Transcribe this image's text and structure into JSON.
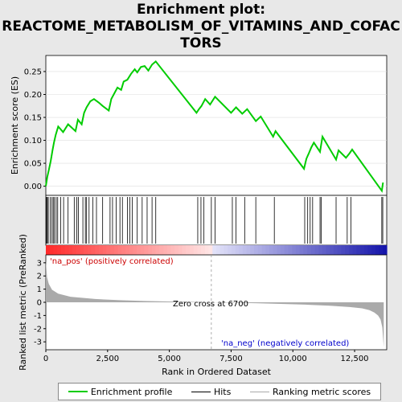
{
  "title_line1": "Enrichment plot:",
  "title_line2": "REACTOME_METABOLISM_OF_VITAMINS_AND_COFAC",
  "title_line3": "TORS",
  "colors": {
    "enrichment": "#00cc00",
    "hits": "#000000",
    "metric": "#aaaaaa",
    "pos_label": "#cc0000",
    "neg_label": "#0000cc"
  },
  "chart_data": {
    "type": "line",
    "xlabel": "Rank in Ordered Dataset",
    "x_ticks": [
      0,
      2500,
      5000,
      7500,
      10000,
      12500
    ],
    "x_tick_labels": [
      "0",
      "2,500",
      "5,000",
      "7,500",
      "10,000",
      "12,500"
    ],
    "xlim": [
      0,
      13800
    ],
    "es_panel": {
      "ylabel": "Enrichment score (ES)",
      "ylim": [
        -0.02,
        0.285
      ],
      "y_ticks": [
        0.0,
        0.05,
        0.1,
        0.15,
        0.2,
        0.25
      ],
      "y_tick_labels": [
        "0.00",
        "0.05",
        "0.10",
        "0.15",
        "0.20",
        "0.25"
      ],
      "series": [
        {
          "name": "Enrichment profile",
          "x": [
            0,
            60,
            120,
            200,
            270,
            330,
            400,
            500,
            700,
            900,
            1200,
            1300,
            1450,
            1550,
            1650,
            1800,
            1950,
            2150,
            2300,
            2550,
            2650,
            2800,
            2900,
            3050,
            3150,
            3300,
            3450,
            3600,
            3700,
            3850,
            4000,
            4150,
            4300,
            4450,
            6100,
            6200,
            6300,
            6450,
            6650,
            6850,
            7500,
            7700,
            7950,
            8150,
            8500,
            8700,
            9200,
            9300,
            10450,
            10550,
            10650,
            10750,
            10850,
            11100,
            11200,
            11750,
            11850,
            12150,
            12300,
            12400,
            13600,
            13650
          ],
          "y": [
            0.0,
            0.02,
            0.035,
            0.055,
            0.078,
            0.095,
            0.112,
            0.13,
            0.118,
            0.135,
            0.12,
            0.145,
            0.135,
            0.16,
            0.172,
            0.185,
            0.19,
            0.182,
            0.175,
            0.165,
            0.19,
            0.205,
            0.215,
            0.21,
            0.228,
            0.232,
            0.245,
            0.255,
            0.248,
            0.26,
            0.262,
            0.252,
            0.265,
            0.272,
            0.16,
            0.168,
            0.175,
            0.19,
            0.178,
            0.195,
            0.16,
            0.172,
            0.158,
            0.168,
            0.142,
            0.152,
            0.108,
            0.12,
            0.038,
            0.06,
            0.072,
            0.085,
            0.095,
            0.075,
            0.108,
            0.058,
            0.078,
            0.062,
            0.072,
            0.08,
            -0.01,
            0.008
          ]
        }
      ]
    },
    "hits": [
      30,
      60,
      100,
      180,
      250,
      300,
      350,
      420,
      480,
      600,
      720,
      900,
      1150,
      1250,
      1320,
      1500,
      1600,
      1650,
      1750,
      1900,
      2050,
      2300,
      2600,
      2700,
      2850,
      3000,
      3100,
      3300,
      3400,
      3500,
      3700,
      3900,
      4100,
      4300,
      4450,
      6150,
      6280,
      6400,
      6700,
      6850,
      7550,
      7700,
      8050,
      8500,
      9250,
      10480,
      10600,
      10700,
      10800,
      11100,
      11150,
      11750,
      12200,
      12350,
      13600,
      13640
    ],
    "metric_panel": {
      "ylabel": "Ranked list metric (PreRanked)",
      "ylim": [
        -3.6,
        3.6
      ],
      "y_ticks": [
        -3,
        -2,
        -1,
        0,
        1,
        2,
        3
      ],
      "y_tick_labels": [
        "-3",
        "-2",
        "-1",
        "0",
        "1",
        "2",
        "3"
      ],
      "x": [
        0,
        50,
        120,
        250,
        500,
        1000,
        2000,
        3000,
        4000,
        5000,
        6000,
        6700,
        7500,
        8500,
        9500,
        10500,
        11500,
        12300,
        12800,
        13100,
        13300,
        13450,
        13550,
        13620,
        13680
      ],
      "y": [
        3.2,
        1.9,
        1.4,
        0.95,
        0.65,
        0.42,
        0.25,
        0.16,
        0.1,
        0.06,
        0.03,
        0.0,
        -0.03,
        -0.07,
        -0.12,
        -0.18,
        -0.26,
        -0.36,
        -0.46,
        -0.6,
        -0.78,
        -1.0,
        -1.3,
        -1.9,
        -3.4
      ]
    },
    "annotations": {
      "pos_label": "'na_pos' (positively correlated)",
      "neg_label": "'na_neg' (negatively correlated)",
      "zero_cross": "Zero cross at 6700",
      "zero_cross_x": 6700
    },
    "legend": [
      "Enrichment profile",
      "Hits",
      "Ranking metric scores"
    ]
  }
}
